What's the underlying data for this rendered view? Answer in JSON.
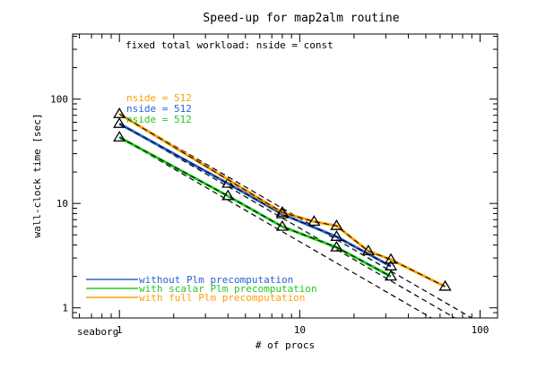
{
  "chart_data": {
    "type": "line",
    "title": "Speed-up for map2alm routine",
    "subtitle": "fixed total workload: nside = const",
    "xlabel": "# of procs",
    "ylabel": "wall-clock time [sec]",
    "machine_label": "seaborg",
    "xscale": "log",
    "yscale": "log",
    "xlim": [
      0.55,
      125
    ],
    "ylim": [
      0.8,
      420
    ],
    "x_ticks": [
      {
        "value": 1,
        "label": "1"
      },
      {
        "value": 10,
        "label": "10"
      },
      {
        "value": 100,
        "label": "100"
      }
    ],
    "y_ticks": [
      {
        "value": 1,
        "label": "1"
      },
      {
        "value": 10,
        "label": "10"
      },
      {
        "value": 100,
        "label": "100"
      }
    ],
    "grid": false,
    "legend_position": "bottom-left",
    "series": [
      {
        "name": "without Plm precomputation",
        "color": "#2a63d4",
        "nside_label": "nside = 512",
        "x": [
          1,
          4,
          8,
          16,
          32
        ],
        "y": [
          58,
          15.5,
          7.9,
          4.8,
          2.5
        ]
      },
      {
        "name": "with scalar Plm precomputation",
        "color": "#22c822",
        "nside_label": "nside = 512",
        "x": [
          1,
          4,
          8,
          16,
          32
        ],
        "y": [
          43,
          11.8,
          6.0,
          3.8,
          2.0
        ]
      },
      {
        "name": "with full Plm precomputation",
        "color": "#ff9f00",
        "nside_label": "nside = 512",
        "x": [
          1,
          8,
          12,
          16,
          24,
          32,
          64
        ],
        "y": [
          72,
          8.2,
          6.7,
          6.1,
          3.5,
          2.9,
          1.6
        ]
      }
    ],
    "ideal_scaling": [
      {
        "y_at_1": 72
      },
      {
        "y_at_1": 58
      },
      {
        "y_at_1": 43
      }
    ]
  }
}
